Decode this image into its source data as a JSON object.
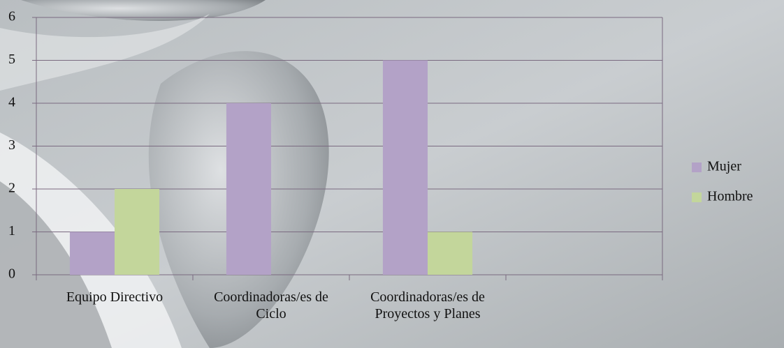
{
  "chart_data": {
    "type": "bar",
    "categories": [
      "Equipo Directivo",
      "Coordinadoras/es de Ciclo",
      "Coordinadoras/es de Proyectos y Planes",
      null
    ],
    "series": [
      {
        "name": "Mujer",
        "color": "#b3a2c7",
        "values": [
          1,
          4,
          5,
          null
        ]
      },
      {
        "name": "Hombre",
        "color": "#c3d69b",
        "values": [
          2,
          null,
          1,
          null
        ]
      }
    ],
    "ylim": [
      0,
      6
    ],
    "yticks": [
      0,
      1,
      2,
      3,
      4,
      5,
      6
    ],
    "grid": true,
    "legend": "right"
  }
}
